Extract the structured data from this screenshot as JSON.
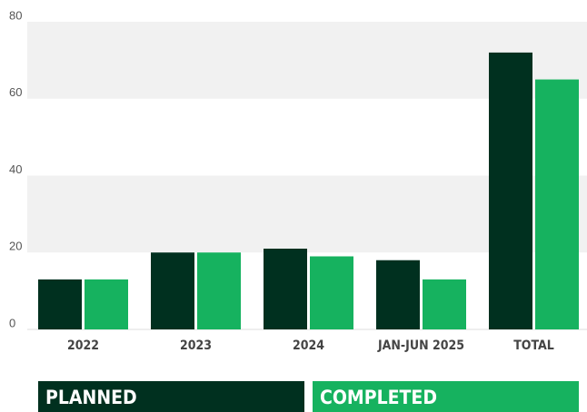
{
  "chart_data": {
    "type": "bar",
    "categories": [
      "2022",
      "2023",
      "2024",
      "JAN-JUN 2025",
      "TOTAL"
    ],
    "series": [
      {
        "name": "PLANNED",
        "color": "#00301f",
        "values": [
          13,
          20,
          21,
          18,
          72
        ]
      },
      {
        "name": "COMPLETED",
        "color": "#16b25f",
        "values": [
          13,
          20,
          19,
          13,
          65
        ]
      }
    ],
    "ylim": [
      0,
      80
    ],
    "yticks": [
      0,
      20,
      40,
      60,
      80
    ],
    "grid": true,
    "legend": "bottom"
  }
}
